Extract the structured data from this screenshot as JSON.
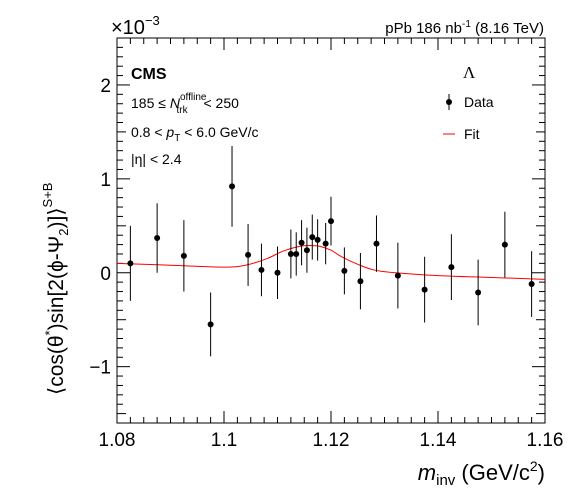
{
  "chart_data": {
    "type": "scatter",
    "xlim": [
      1.08,
      1.16
    ],
    "ylim": [
      -1.6,
      2.5
    ],
    "x_ticks": [
      1.08,
      1.1,
      1.12,
      1.14,
      1.16
    ],
    "x_tick_labels": [
      "1.08",
      "1.1",
      "1.12",
      "1.14",
      "1.16"
    ],
    "y_ticks": [
      -1,
      0,
      1,
      2
    ],
    "y_tick_labels": [
      "−1",
      "0",
      "1",
      "2"
    ],
    "y_multiplier": {
      "base": "×10",
      "exp": "−3"
    },
    "xlabel": {
      "italic": "m",
      "sub": "inv",
      "rest": " (GeV/c",
      "sup": "2",
      "end": ")"
    },
    "ylabel": {
      "p1": "⟨cos(θ",
      "sup1": "*",
      "p2": ")sin[2(ϕ-Ψ",
      "sub2": "2",
      "p3": ")]⟩",
      "sup3": "S+B"
    },
    "top_label": {
      "prefix": "pPb 186 nb",
      "sup": "-1",
      "suffix": " (8.16 TeV)"
    },
    "experiment": "CMS",
    "particle": "Λ",
    "annotations": {
      "ntrk": {
        "left": "185 ≤ ",
        "N": "N",
        "sub": "trk",
        "sup": "offline",
        "right": " < 250"
      },
      "pt": {
        "left": "0.8 < ",
        "p": "p",
        "sub": "T",
        "right": " < 6.0 GeV/c"
      },
      "eta": "|η| < 2.4"
    },
    "legend": [
      {
        "label": "Data",
        "marker": "point",
        "color": "#000000"
      },
      {
        "label": "Fit",
        "marker": "line",
        "color": "#ff0000"
      }
    ],
    "legend_position": "top-right",
    "grid": false,
    "series": [
      {
        "name": "Data",
        "color": "#000000",
        "points": [
          {
            "x": 1.0825,
            "y": 0.1,
            "err": 0.4
          },
          {
            "x": 1.0875,
            "y": 0.37,
            "err": 0.37
          },
          {
            "x": 1.0925,
            "y": 0.18,
            "err": 0.38
          },
          {
            "x": 1.0975,
            "y": -0.55,
            "err": 0.34
          },
          {
            "x": 1.1015,
            "y": 0.92,
            "err": 0.43
          },
          {
            "x": 1.1045,
            "y": 0.19,
            "err": 0.33
          },
          {
            "x": 1.107,
            "y": 0.03,
            "err": 0.28
          },
          {
            "x": 1.11,
            "y": 0.0,
            "err": 0.28
          },
          {
            "x": 1.1125,
            "y": 0.2,
            "err": 0.26
          },
          {
            "x": 1.1135,
            "y": 0.2,
            "err": 0.23
          },
          {
            "x": 1.1145,
            "y": 0.32,
            "err": 0.24
          },
          {
            "x": 1.1155,
            "y": 0.24,
            "err": 0.24
          },
          {
            "x": 1.1165,
            "y": 0.38,
            "err": 0.24
          },
          {
            "x": 1.1175,
            "y": 0.35,
            "err": 0.22
          },
          {
            "x": 1.119,
            "y": 0.31,
            "err": 0.22
          },
          {
            "x": 1.12,
            "y": 0.55,
            "err": 0.26
          },
          {
            "x": 1.1225,
            "y": 0.02,
            "err": 0.25
          },
          {
            "x": 1.1255,
            "y": -0.09,
            "err": 0.3
          },
          {
            "x": 1.1285,
            "y": 0.31,
            "err": 0.3
          },
          {
            "x": 1.1325,
            "y": -0.03,
            "err": 0.35
          },
          {
            "x": 1.1375,
            "y": -0.18,
            "err": 0.35
          },
          {
            "x": 1.1425,
            "y": 0.06,
            "err": 0.35
          },
          {
            "x": 1.1475,
            "y": -0.21,
            "err": 0.35
          },
          {
            "x": 1.1525,
            "y": 0.3,
            "err": 0.35
          },
          {
            "x": 1.1575,
            "y": -0.12,
            "err": 0.35
          }
        ]
      },
      {
        "name": "Fit",
        "color": "#ff0000",
        "x": [
          1.08,
          1.09,
          1.1,
          1.104,
          1.108,
          1.111,
          1.114,
          1.116,
          1.118,
          1.12,
          1.122,
          1.125,
          1.128,
          1.132,
          1.14,
          1.15,
          1.16
        ],
        "y": [
          0.1,
          0.08,
          0.06,
          0.08,
          0.15,
          0.23,
          0.28,
          0.29,
          0.28,
          0.24,
          0.17,
          0.09,
          0.03,
          0.0,
          -0.03,
          -0.05,
          -0.07
        ]
      }
    ]
  }
}
